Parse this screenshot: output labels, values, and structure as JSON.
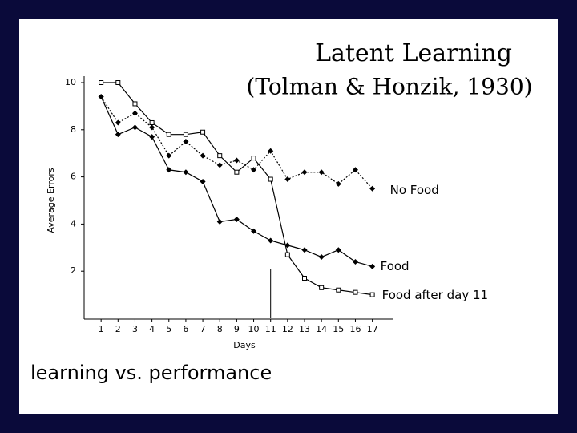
{
  "chart_data": {
    "type": "line",
    "title": "Latent Learning",
    "subtitle": "(Tolman & Honzik, 1930)",
    "annotation": "learning vs. performance",
    "x_label": "Days",
    "y_label": "Average Errors",
    "x": [
      1,
      2,
      3,
      4,
      5,
      6,
      7,
      8,
      9,
      10,
      11,
      12,
      13,
      14,
      15,
      16,
      17
    ],
    "xlim": [
      0,
      18.2
    ],
    "xticks": [
      1,
      2,
      3,
      4,
      5,
      6,
      7,
      8,
      9,
      10,
      11,
      12,
      13,
      14,
      15,
      16,
      17
    ],
    "ylim": [
      0,
      10
    ],
    "yticks": [
      2,
      4,
      6,
      8,
      10
    ],
    "vline_x": 11,
    "series": [
      {
        "name": "No Food",
        "color": "#000000",
        "dash": true,
        "marker": "diamond",
        "values": [
          9.4,
          8.3,
          8.7,
          8.1,
          6.9,
          7.5,
          6.9,
          6.5,
          6.7,
          6.3,
          7.1,
          5.9,
          6.2,
          6.2,
          5.7,
          6.3,
          5.5
        ]
      },
      {
        "name": "Food",
        "color": "#000000",
        "dash": false,
        "marker": "diamond",
        "values": [
          9.4,
          7.8,
          8.1,
          7.7,
          6.3,
          6.2,
          5.8,
          4.1,
          4.2,
          3.7,
          3.3,
          3.1,
          2.9,
          2.6,
          2.9,
          2.4,
          2.2
        ]
      },
      {
        "name": "Food after day 11",
        "color": "#000000",
        "dash": false,
        "marker": "square",
        "values": [
          10.0,
          10.0,
          9.1,
          8.3,
          7.8,
          7.8,
          7.9,
          6.9,
          6.2,
          6.8,
          5.9,
          2.7,
          1.7,
          1.3,
          1.2,
          1.1,
          1.0
        ]
      }
    ]
  }
}
